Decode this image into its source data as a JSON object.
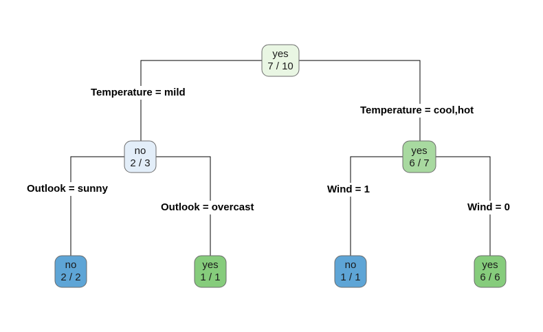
{
  "colors": {
    "edge": "#000000",
    "node_border": "#6b6b6b"
  },
  "nodes": {
    "root": {
      "class": "yes",
      "count": "7 / 10",
      "fill": "#e9f6e3"
    },
    "left": {
      "class": "no",
      "count": "2 / 3",
      "fill": "#e3eef9"
    },
    "right": {
      "class": "yes",
      "count": "6 / 7",
      "fill": "#a8d9a0"
    },
    "leaf_ll": {
      "class": "no",
      "count": "2 / 2",
      "fill": "#5ea5d6"
    },
    "leaf_lr": {
      "class": "yes",
      "count": "1 / 1",
      "fill": "#86cc7c"
    },
    "leaf_rl": {
      "class": "no",
      "count": "1 / 1",
      "fill": "#5ea5d6"
    },
    "leaf_rr": {
      "class": "yes",
      "count": "6 / 6",
      "fill": "#86cc7c"
    }
  },
  "splits": {
    "root_left": "Temperature = mild",
    "root_right": "Temperature = cool,hot",
    "left_left": "Outlook = sunny",
    "left_right": "Outlook = overcast",
    "right_left": "Wind = 1",
    "right_right": "Wind = 0"
  }
}
